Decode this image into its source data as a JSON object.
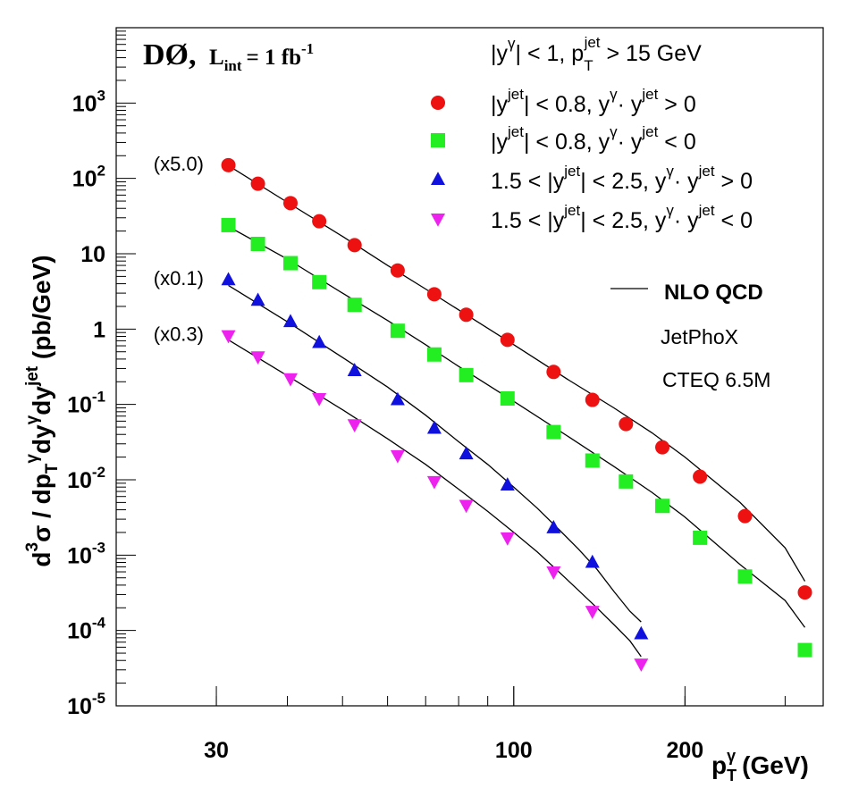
{
  "chart_data": {
    "type": "scatter",
    "title": "DØ, L_int = 1 fb^-1",
    "title_parts": {
      "main": "DØ,",
      "l": "L",
      "l_sub": "int",
      "eq": "= 1 fb",
      "exp": "-1"
    },
    "xlabel": "p_T^γ (GeV)",
    "xlabel_parts": {
      "p": "p",
      "sup": "γ",
      "sub": "T",
      "unit": "(GeV)"
    },
    "ylabel": "d^3σ / dp_T^γ dy^γ dy^jet (pb/GeV)",
    "ylabel_parts": [
      {
        "t": "d",
        "s": "n"
      },
      {
        "t": "3",
        "s": "sup"
      },
      {
        "t": "σ  /  dp",
        "s": "n"
      },
      {
        "t": "T",
        "s": "sub"
      },
      {
        "t": "γ",
        "s": "sup"
      },
      {
        "t": "dy",
        "s": "n"
      },
      {
        "t": "γ",
        "s": "sup"
      },
      {
        "t": "dy",
        "s": "n"
      },
      {
        "t": "jet",
        "s": "sup"
      },
      {
        "t": "   (pb/GeV)",
        "s": "n"
      }
    ],
    "x_scale": "log",
    "y_scale": "log",
    "xlim": [
      20,
      350
    ],
    "ylim": [
      1e-05,
      10000
    ],
    "x_ticks": [
      {
        "v": 30,
        "label": "30"
      },
      {
        "v": 100,
        "label": "100"
      },
      {
        "v": 200,
        "label": "200"
      }
    ],
    "y_ticks": [
      {
        "v": 1e-05,
        "base": "10",
        "exp": "-5"
      },
      {
        "v": 0.0001,
        "base": "10",
        "exp": "-4"
      },
      {
        "v": 0.001,
        "base": "10",
        "exp": "-3"
      },
      {
        "v": 0.01,
        "base": "10",
        "exp": "-2"
      },
      {
        "v": 0.1,
        "base": "10",
        "exp": "-1"
      },
      {
        "v": 1,
        "base": "1",
        "exp": ""
      },
      {
        "v": 10,
        "base": "10",
        "exp": ""
      },
      {
        "v": 100,
        "base": "10",
        "exp": "2"
      },
      {
        "v": 1000,
        "base": "10",
        "exp": "3"
      }
    ],
    "grid": false,
    "legend_position": "top-right",
    "header": {
      "a": "|y",
      "a_sup": "γ",
      "b": "| < 1,    p",
      "b_sub": "T",
      "b_sup": "jet",
      "c": " > 15 GeV"
    },
    "series": [
      {
        "marker": "circle",
        "color": "#ee1111",
        "scale_label": "(x5.0)",
        "legend": {
          "a": "|y",
          "a_sup": "jet",
          "b": "| < 0.8,  y",
          "b_sup": "γ",
          "c": "· y",
          "c_sup": "jet",
          "d": " > 0"
        },
        "x": [
          31.5,
          35.5,
          40.5,
          45.5,
          52.5,
          62.5,
          72.5,
          82.5,
          97.5,
          117.5,
          137.5,
          157.5,
          182.5,
          212.5,
          255,
          325
        ],
        "y": [
          150,
          85,
          47,
          27,
          13,
          6,
          2.9,
          1.55,
          0.72,
          0.27,
          0.115,
          0.055,
          0.027,
          0.011,
          0.0033,
          0.00032
        ],
        "theory_x": [
          31.5,
          40,
          50,
          60,
          70,
          80,
          100,
          125,
          150,
          175,
          200,
          250,
          300,
          325
        ],
        "theory_y": [
          148,
          48,
          17,
          7,
          3.4,
          1.8,
          0.62,
          0.21,
          0.09,
          0.042,
          0.02,
          0.005,
          0.00125,
          0.00045
        ]
      },
      {
        "marker": "square",
        "color": "#22ee22",
        "scale_label": "",
        "legend": {
          "a": "|y",
          "a_sup": "jet",
          "b": "| < 0.8,  y",
          "b_sup": "γ",
          "c": "· y",
          "c_sup": "jet",
          "d": " < 0"
        },
        "x": [
          31.5,
          35.5,
          40.5,
          45.5,
          52.5,
          62.5,
          72.5,
          82.5,
          97.5,
          117.5,
          137.5,
          157.5,
          182.5,
          212.5,
          255,
          325
        ],
        "y": [
          24,
          13.5,
          7.5,
          4.2,
          2.1,
          0.95,
          0.46,
          0.245,
          0.12,
          0.043,
          0.018,
          0.0095,
          0.0045,
          0.0017,
          0.00052,
          5.5e-05
        ],
        "theory_x": [
          31.5,
          40,
          50,
          60,
          70,
          80,
          100,
          125,
          150,
          175,
          200,
          250,
          300,
          325
        ],
        "theory_y": [
          23,
          8.5,
          3,
          1.3,
          0.62,
          0.32,
          0.11,
          0.037,
          0.015,
          0.0068,
          0.0032,
          0.00075,
          0.00025,
          0.00011
        ]
      },
      {
        "marker": "triangle-up",
        "color": "#1111dd",
        "scale_label": "(x0.1)",
        "legend": {
          "a": "1.5 < |y",
          "a_sup": "jet",
          "b": "| < 2.5,  y",
          "b_sup": "γ",
          "c": "· y",
          "c_sup": "jet",
          "d": " > 0"
        },
        "x": [
          31.5,
          35.5,
          40.5,
          45.5,
          52.5,
          62.5,
          72.5,
          82.5,
          97.5,
          117.5,
          137.5,
          167.5
        ],
        "y": [
          4.5,
          2.4,
          1.25,
          0.66,
          0.28,
          0.115,
          0.048,
          0.022,
          0.0085,
          0.0023,
          0.0008,
          9e-05
        ],
        "theory_x": [
          31.5,
          40,
          50,
          60,
          70,
          80,
          90,
          100,
          110,
          120,
          130,
          140,
          150,
          160,
          167.5
        ],
        "theory_y": [
          3.8,
          1.25,
          0.42,
          0.17,
          0.072,
          0.032,
          0.016,
          0.008,
          0.0042,
          0.0022,
          0.0012,
          0.00065,
          0.00033,
          0.00018,
          0.00013
        ]
      },
      {
        "marker": "triangle-down",
        "color": "#ee22ee",
        "scale_label": "(x0.3)",
        "legend": {
          "a": "1.5 < |y",
          "a_sup": "jet",
          "b": "| < 2.5,  y",
          "b_sup": "γ",
          "c": "· y",
          "c_sup": "jet",
          "d": " < 0"
        },
        "x": [
          31.5,
          35.5,
          40.5,
          45.5,
          52.5,
          62.5,
          72.5,
          82.5,
          97.5,
          117.5,
          137.5,
          167.5
        ],
        "y": [
          0.82,
          0.43,
          0.22,
          0.12,
          0.054,
          0.021,
          0.0095,
          0.0046,
          0.0017,
          0.0006,
          0.00018,
          3.6e-05
        ],
        "theory_x": [
          31.5,
          40,
          50,
          60,
          70,
          80,
          90,
          100,
          110,
          120,
          130,
          140,
          150,
          160,
          167.5
        ],
        "theory_y": [
          0.72,
          0.24,
          0.085,
          0.035,
          0.016,
          0.0075,
          0.0038,
          0.002,
          0.0011,
          0.0006,
          0.00034,
          0.0002,
          0.00012,
          7.3e-05,
          4.5e-05
        ]
      }
    ],
    "theory": {
      "line_label": "NLO QCD",
      "program": "JetPhoX",
      "pdf": "CTEQ 6.5M"
    }
  }
}
